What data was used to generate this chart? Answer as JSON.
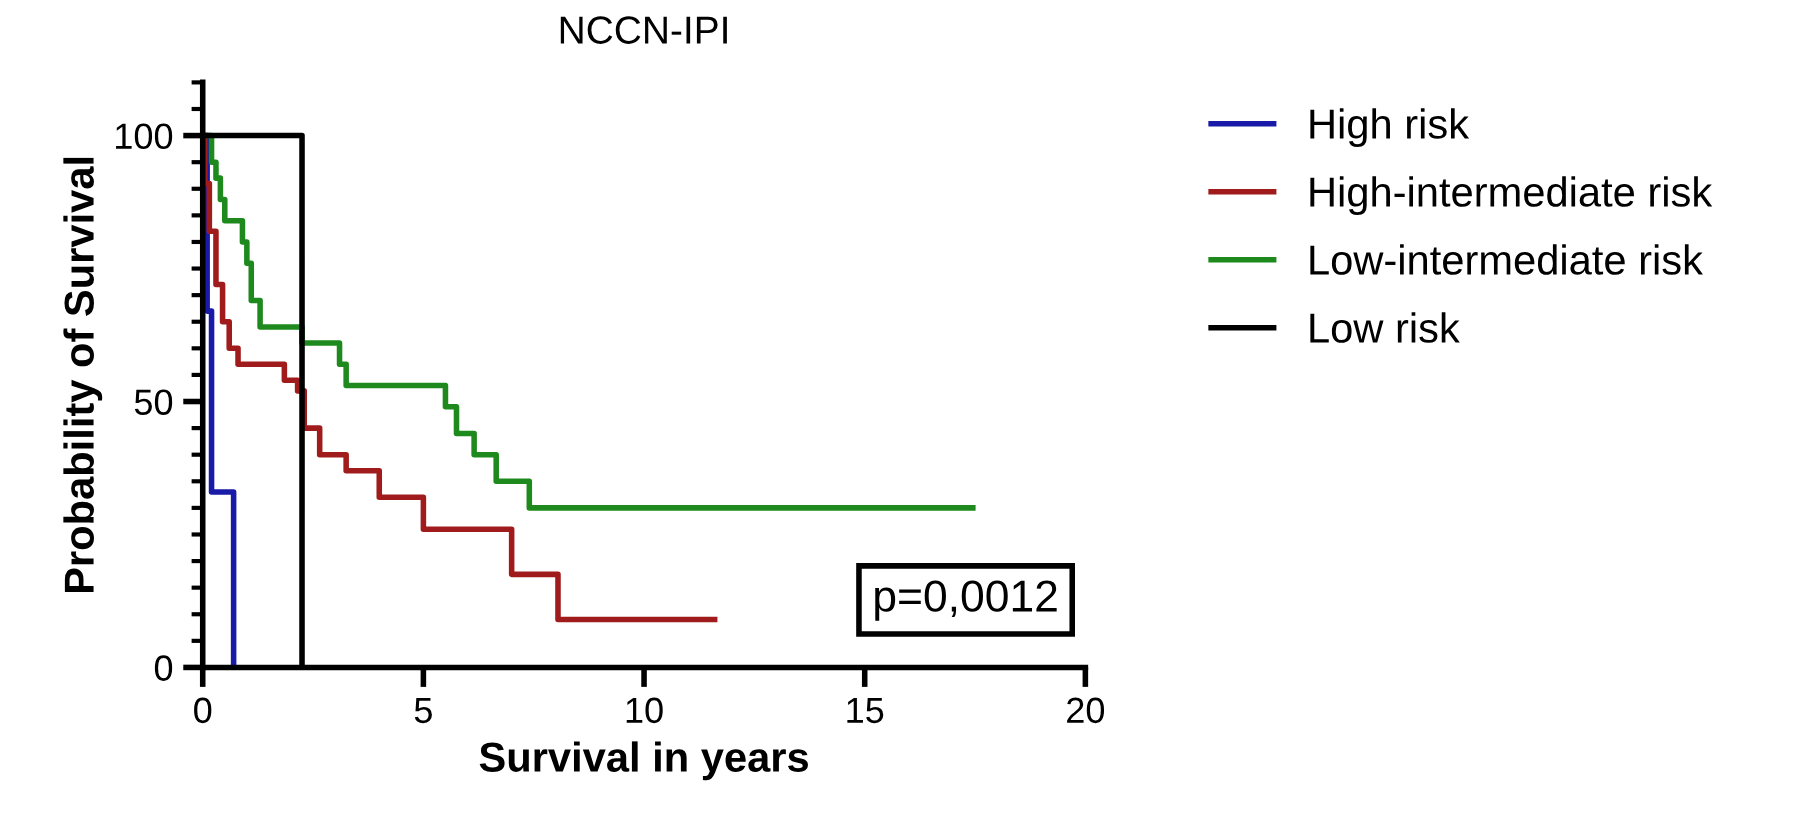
{
  "chart_data": {
    "type": "step",
    "title": "NCCN-IPI",
    "xlabel": "Survival in years",
    "ylabel": "Probability of Survival",
    "xlim": [
      0,
      20
    ],
    "xticks": [
      0,
      5,
      10,
      15,
      20
    ],
    "ylim": [
      0,
      110
    ],
    "yticks": [
      0,
      50,
      100,
      {
        "value": 5,
        "label": null
      },
      {
        "value": 10,
        "label": null
      },
      {
        "value": 15,
        "label": null
      },
      {
        "value": 20,
        "label": null
      },
      {
        "value": 25,
        "label": null
      },
      {
        "value": 30,
        "label": null
      },
      {
        "value": 35,
        "label": null
      },
      {
        "value": 40,
        "label": null
      },
      {
        "value": 45,
        "label": null
      },
      {
        "value": 55,
        "label": null
      },
      {
        "value": 60,
        "label": null
      },
      {
        "value": 65,
        "label": null
      },
      {
        "value": 70,
        "label": null
      },
      {
        "value": 75,
        "label": null
      },
      {
        "value": 80,
        "label": null
      },
      {
        "value": 85,
        "label": null
      },
      {
        "value": 90,
        "label": null
      },
      {
        "value": 95,
        "label": null
      },
      {
        "value": 105,
        "label": null
      },
      {
        "value": 110,
        "label": null
      }
    ],
    "grid": false,
    "legend": "right",
    "line_style": "solid",
    "annotations": [
      "p=0,0012"
    ],
    "series": [
      {
        "name": "High risk",
        "color": "#1a1aa8",
        "x": [
          0,
          0.1,
          0.2,
          0.7
        ],
        "values": [
          100,
          67,
          33,
          0
        ]
      },
      {
        "name": "High-intermediate risk",
        "color": "#a01c1c",
        "x": [
          0,
          0.05,
          0.15,
          0.3,
          0.45,
          0.6,
          0.8,
          1.85,
          2.15,
          2.3,
          2.65,
          3.25,
          4.0,
          5.0,
          7.0,
          8.05,
          11.6
        ],
        "values": [
          100,
          91,
          82,
          72,
          65,
          60,
          57,
          54,
          52,
          45,
          40,
          37,
          32,
          26,
          17.5,
          9,
          9
        ]
      },
      {
        "name": "Low-intermediate risk",
        "color": "#1e8a1e",
        "x": [
          0,
          0.2,
          0.3,
          0.4,
          0.5,
          0.9,
          1.0,
          1.1,
          1.3,
          2.25,
          3.1,
          3.25,
          5.5,
          5.75,
          6.15,
          6.65,
          7.4,
          17.45
        ],
        "values": [
          100,
          95,
          92,
          88,
          84,
          80,
          76,
          69,
          64,
          61,
          57,
          53,
          49,
          44,
          40,
          35,
          30,
          30
        ]
      },
      {
        "name": "Low risk",
        "color": "#000000",
        "x": [
          0,
          2.25,
          2.25
        ],
        "values": [
          100,
          100,
          0
        ]
      }
    ]
  }
}
